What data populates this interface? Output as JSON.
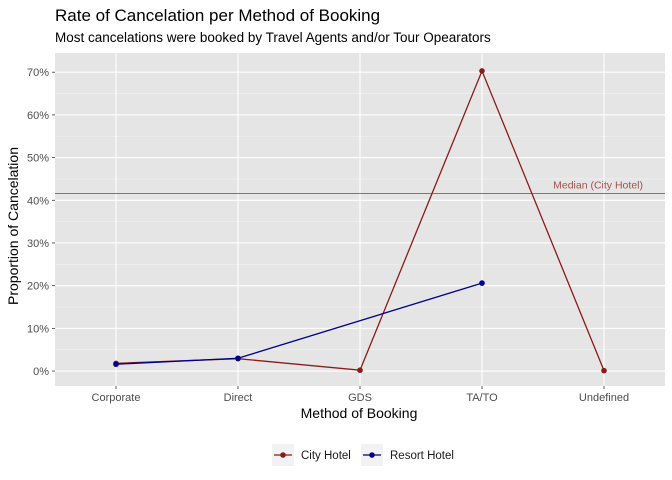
{
  "chart_data": {
    "type": "line",
    "title": "Rate of Cancelation per Method of Booking",
    "subtitle": "Most cancelations were booked by Travel Agents and/or Tour Opearators",
    "xlabel": "Method of Booking",
    "ylabel": "Proportion of Cancelation",
    "categories": [
      "Corporate",
      "Direct",
      "GDS",
      "TA/TO",
      "Undefined"
    ],
    "ylim": [
      -0.035,
      0.745
    ],
    "yticks": [
      0,
      0.1,
      0.2,
      0.3,
      0.4,
      0.5,
      0.6,
      0.7
    ],
    "ytick_labels": [
      "0%",
      "10%",
      "20%",
      "30%",
      "40%",
      "50%",
      "60%",
      "70%"
    ],
    "grid": true,
    "legend_position": "bottom",
    "series": [
      {
        "name": "City Hotel",
        "color": "#8b1a1a",
        "values": [
          0.018,
          0.029,
          0.002,
          0.703,
          0.001
        ]
      },
      {
        "name": "Resort Hotel",
        "color": "#00008b",
        "values": [
          0.016,
          0.03,
          null,
          0.206,
          null
        ]
      }
    ],
    "annotations": [
      {
        "type": "hline",
        "y": 0.416,
        "label": "Median (City Hotel)",
        "color": "#a0524f"
      }
    ],
    "panel_background": "#e5e5e5"
  }
}
